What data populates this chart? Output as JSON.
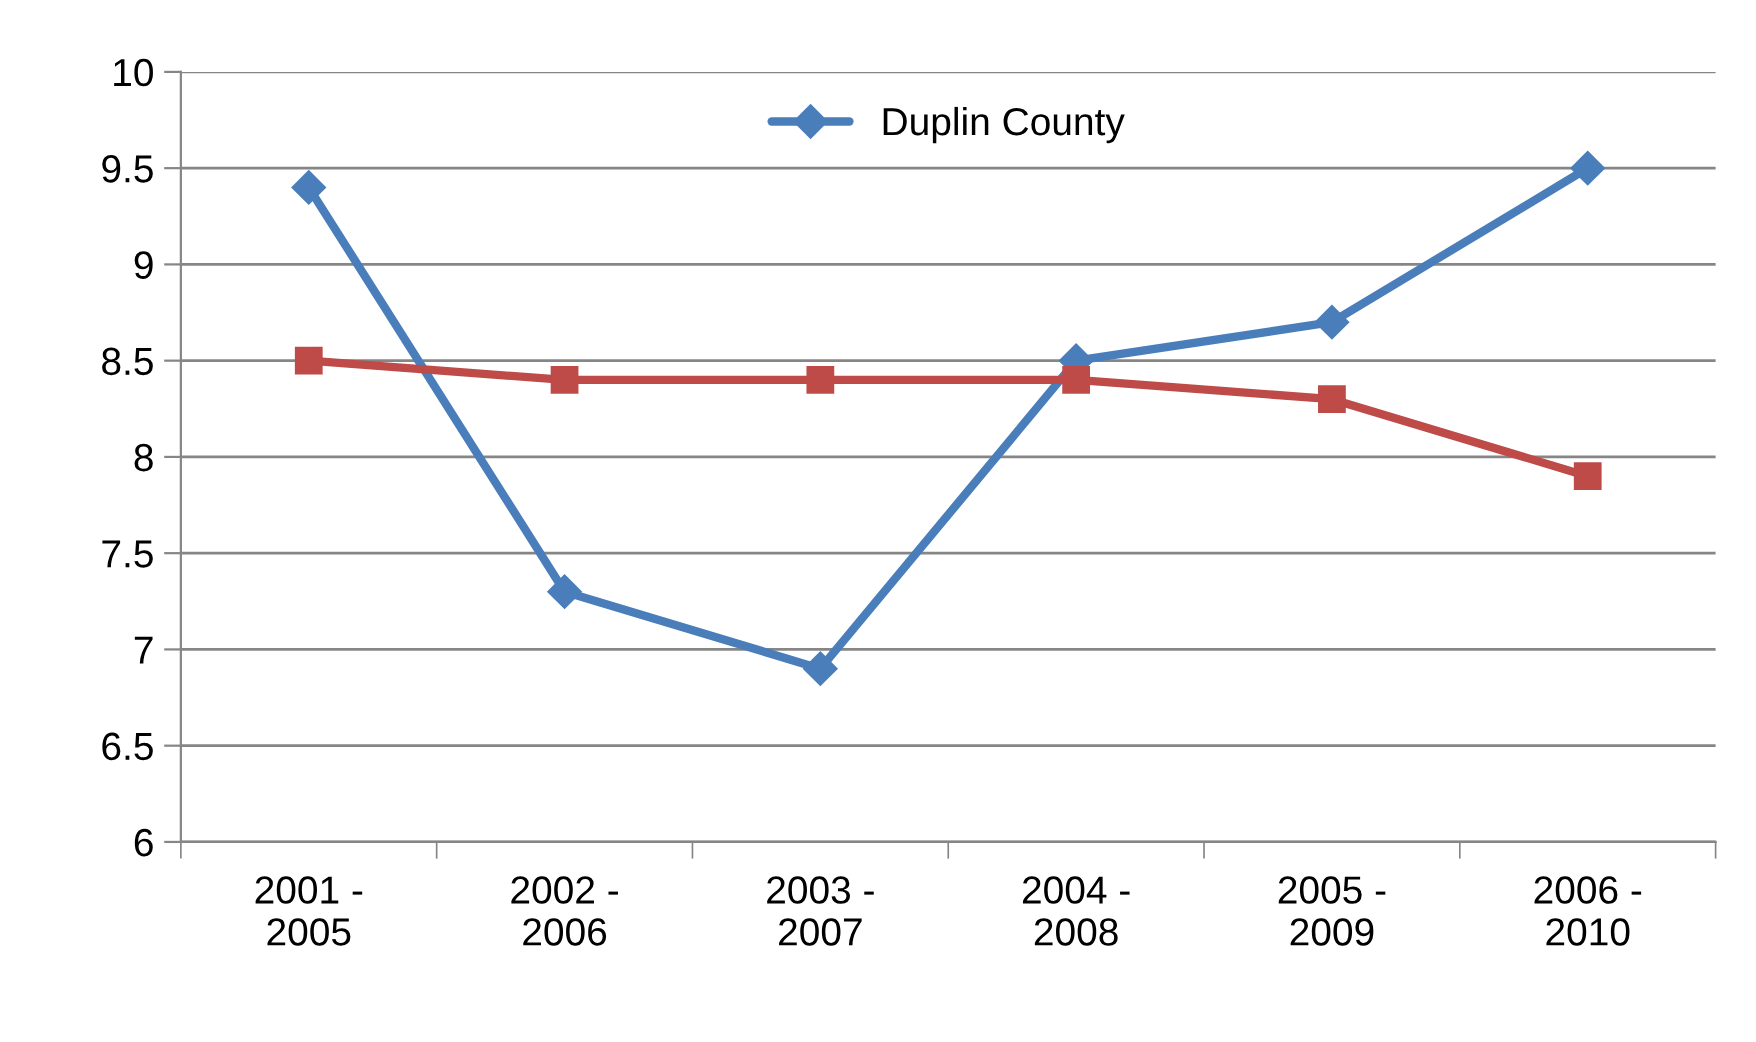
{
  "chart_data": {
    "type": "line",
    "categories": [
      "2001 - 2005",
      "2002 - 2006",
      "2003 - 2007",
      "2004 - 2008",
      "2005 - 2009",
      "2006 - 2010"
    ],
    "series": [
      {
        "name": "Duplin County",
        "color": "#4a7ebb",
        "marker": "diamond",
        "values": [
          9.4,
          7.3,
          6.9,
          8.5,
          8.7,
          9.5
        ]
      },
      {
        "color": "#be4b48",
        "marker": "square",
        "values": [
          8.5,
          8.4,
          8.4,
          8.4,
          8.3,
          7.9
        ]
      }
    ],
    "ylim": [
      6,
      10
    ],
    "yticks": [
      6,
      6.5,
      7,
      7.5,
      8,
      8.5,
      9,
      9.5,
      10
    ],
    "grid": "y",
    "legend": "top",
    "line_style": "solid"
  }
}
